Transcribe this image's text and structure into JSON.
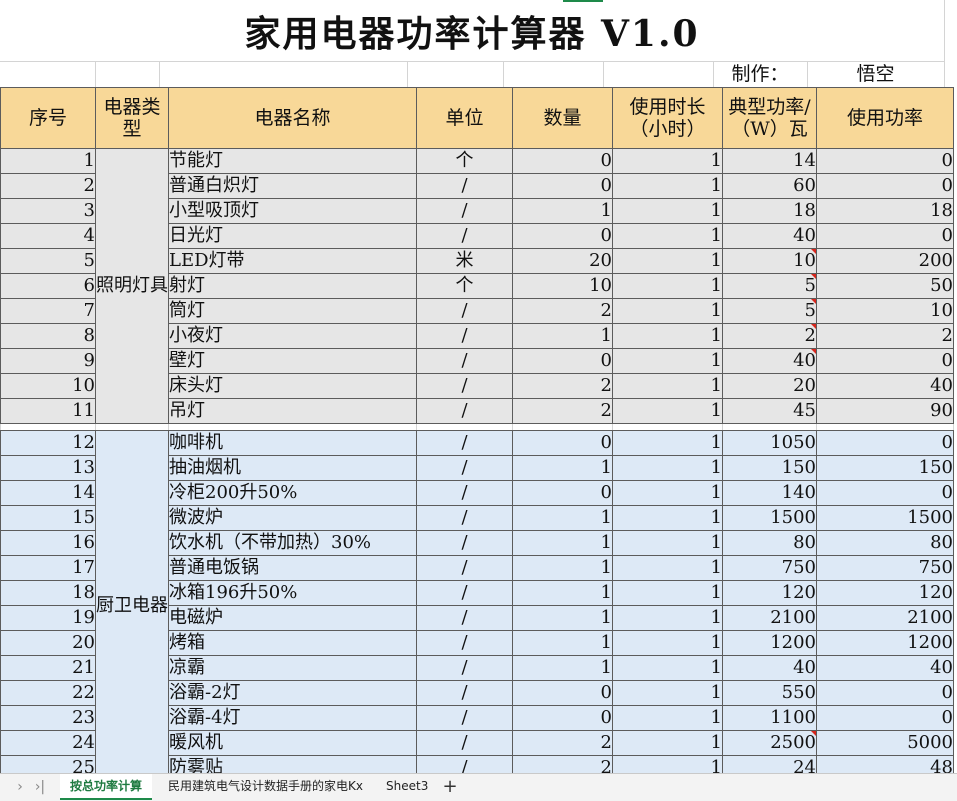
{
  "title": "家用电器功率计算器 V1.0",
  "maker_label": "制作：",
  "maker_name": "悟空",
  "headers": [
    "序号",
    "电器类型",
    "电器名称",
    "单位",
    "数量",
    "使用时长（小时）",
    "典型功率/（W）瓦",
    "使用功率"
  ],
  "groups": [
    {
      "category": "照明灯具",
      "rows": [
        {
          "no": "1",
          "name": "节能灯",
          "unit": "个",
          "qty": "0",
          "hours": "1",
          "power": "14",
          "use": "0",
          "note": false
        },
        {
          "no": "2",
          "name": "普通白炽灯",
          "unit": "/",
          "qty": "0",
          "hours": "1",
          "power": "60",
          "use": "0",
          "note": false
        },
        {
          "no": "3",
          "name": "小型吸顶灯",
          "unit": "/",
          "qty": "1",
          "hours": "1",
          "power": "18",
          "use": "18",
          "note": false
        },
        {
          "no": "4",
          "name": "日光灯",
          "unit": "/",
          "qty": "0",
          "hours": "1",
          "power": "40",
          "use": "0",
          "note": false
        },
        {
          "no": "5",
          "name": "LED灯带",
          "unit": "米",
          "qty": "20",
          "hours": "1",
          "power": "10",
          "use": "200",
          "note": true
        },
        {
          "no": "6",
          "name": "射灯",
          "unit": "个",
          "qty": "10",
          "hours": "1",
          "power": "5",
          "use": "50",
          "note": true
        },
        {
          "no": "7",
          "name": "筒灯",
          "unit": "/",
          "qty": "2",
          "hours": "1",
          "power": "5",
          "use": "10",
          "note": true
        },
        {
          "no": "8",
          "name": "小夜灯",
          "unit": "/",
          "qty": "1",
          "hours": "1",
          "power": "2",
          "use": "2",
          "note": true
        },
        {
          "no": "9",
          "name": "壁灯",
          "unit": "/",
          "qty": "0",
          "hours": "1",
          "power": "40",
          "use": "0",
          "note": true
        },
        {
          "no": "10",
          "name": "床头灯",
          "unit": "/",
          "qty": "2",
          "hours": "1",
          "power": "20",
          "use": "40",
          "note": false
        },
        {
          "no": "11",
          "name": "吊灯",
          "unit": "/",
          "qty": "2",
          "hours": "1",
          "power": "45",
          "use": "90",
          "note": false
        }
      ]
    },
    {
      "category": "厨卫电器",
      "rows": [
        {
          "no": "12",
          "name": "咖啡机",
          "unit": "/",
          "qty": "0",
          "hours": "1",
          "power": "1050",
          "use": "0",
          "note": false
        },
        {
          "no": "13",
          "name": "抽油烟机",
          "unit": "/",
          "qty": "1",
          "hours": "1",
          "power": "150",
          "use": "150",
          "note": false
        },
        {
          "no": "14",
          "name": "冷柜200升50%",
          "unit": "/",
          "qty": "0",
          "hours": "1",
          "power": "140",
          "use": "0",
          "note": false
        },
        {
          "no": "15",
          "name": "微波炉",
          "unit": "/",
          "qty": "1",
          "hours": "1",
          "power": "1500",
          "use": "1500",
          "note": false
        },
        {
          "no": "16",
          "name": "饮水机（不带加热）30%",
          "unit": "/",
          "qty": "1",
          "hours": "1",
          "power": "80",
          "use": "80",
          "note": false
        },
        {
          "no": "17",
          "name": "普通电饭锅",
          "unit": "/",
          "qty": "1",
          "hours": "1",
          "power": "750",
          "use": "750",
          "note": false
        },
        {
          "no": "18",
          "name": "冰箱196升50%",
          "unit": "/",
          "qty": "1",
          "hours": "1",
          "power": "120",
          "use": "120",
          "note": false
        },
        {
          "no": "19",
          "name": "电磁炉",
          "unit": "/",
          "qty": "1",
          "hours": "1",
          "power": "2100",
          "use": "2100",
          "note": false
        },
        {
          "no": "20",
          "name": "烤箱",
          "unit": "/",
          "qty": "1",
          "hours": "1",
          "power": "1200",
          "use": "1200",
          "note": false
        },
        {
          "no": "21",
          "name": "凉霸",
          "unit": "/",
          "qty": "1",
          "hours": "1",
          "power": "40",
          "use": "40",
          "note": false
        },
        {
          "no": "22",
          "name": "浴霸-2灯",
          "unit": "/",
          "qty": "0",
          "hours": "1",
          "power": "550",
          "use": "0",
          "note": false
        },
        {
          "no": "23",
          "name": "浴霸-4灯",
          "unit": "/",
          "qty": "0",
          "hours": "1",
          "power": "1100",
          "use": "0",
          "note": false
        },
        {
          "no": "24",
          "name": "暖风机",
          "unit": "/",
          "qty": "2",
          "hours": "1",
          "power": "2500",
          "use": "5000",
          "note": true
        },
        {
          "no": "25",
          "name": "防雾贴",
          "unit": "/",
          "qty": "2",
          "hours": "1",
          "power": "24",
          "use": "48",
          "note": false
        }
      ]
    }
  ],
  "tabs": [
    {
      "label": "按总功率计算",
      "active": true
    },
    {
      "label": "民用建筑电气设计数据手册的家电Kx",
      "active": false
    },
    {
      "label": "Sheet3",
      "active": false
    }
  ],
  "add_tab_label": "+",
  "nav_icons": [
    "chevron-right-icon",
    "last-sheet-icon"
  ],
  "colors": {
    "header_bg": "#f8d898",
    "lighting_bg": "#e6e6e6",
    "kitchen_bg": "#dde9f6",
    "active_tab": "#1e7a40",
    "comment_marker": "#d8261c"
  }
}
